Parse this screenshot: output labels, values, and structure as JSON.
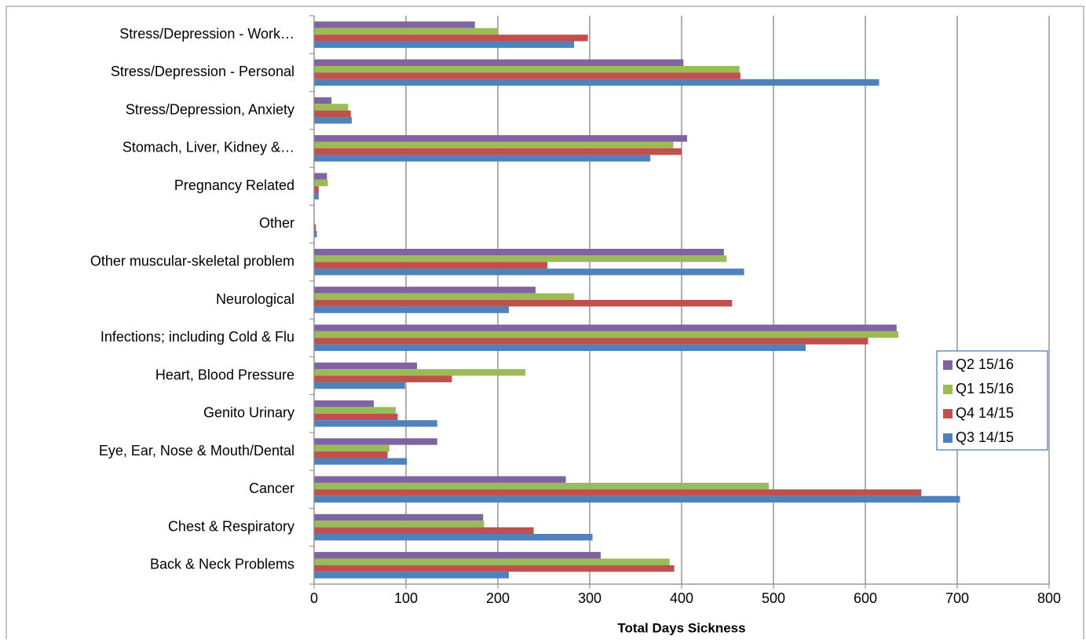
{
  "chart_data": {
    "type": "bar",
    "orientation": "horizontal",
    "x_label": "Total Days Sickness",
    "categories": [
      "Stress/Depression - Work…",
      "Stress/Depression - Personal",
      "Stress/Depression, Anxiety",
      "Stomach, Liver, Kidney &…",
      "Pregnancy Related",
      "Other",
      "Other muscular-skeletal problem",
      "Neurological",
      "Infections; including Cold & Flu",
      "Heart, Blood Pressure",
      "Genito Urinary",
      "Eye, Ear, Nose & Mouth/Dental",
      "Cancer",
      "Chest & Respiratory",
      "Back & Neck Problems"
    ],
    "series": [
      {
        "name": "Q2 15/16",
        "color": "#8064a2",
        "values": [
          175,
          402,
          19,
          406,
          14,
          0,
          446,
          241,
          634,
          112,
          65,
          134,
          274,
          184,
          312
        ]
      },
      {
        "name": "Q1 15/16",
        "color": "#9bbb59",
        "values": [
          200,
          463,
          37,
          391,
          15,
          0,
          449,
          283,
          636,
          230,
          89,
          82,
          495,
          185,
          387
        ]
      },
      {
        "name": "Q4 14/15",
        "color": "#c0504d",
        "values": [
          298,
          464,
          40,
          400,
          5,
          2,
          254,
          455,
          603,
          150,
          91,
          80,
          661,
          239,
          392
        ]
      },
      {
        "name": "Q3 14/15",
        "color": "#4f81bd",
        "values": [
          283,
          615,
          41,
          366,
          5,
          3,
          468,
          212,
          535,
          99,
          134,
          101,
          703,
          303,
          212
        ]
      }
    ],
    "xlim": [
      0,
      800
    ],
    "xticks": [
      0,
      100,
      200,
      300,
      400,
      500,
      600,
      700,
      800
    ],
    "grid": true,
    "legend": "right"
  }
}
